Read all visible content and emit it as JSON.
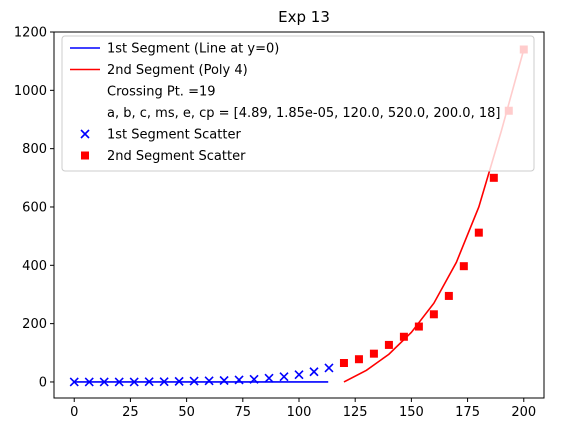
{
  "chart_data": {
    "type": "line",
    "title": "Exp 13",
    "xlabel": "",
    "ylabel": "",
    "xlim": [
      -9,
      209
    ],
    "ylim": [
      -55,
      1200
    ],
    "xticks": [
      0,
      25,
      50,
      75,
      100,
      125,
      150,
      175,
      200
    ],
    "yticks": [
      0,
      200,
      400,
      600,
      800,
      1000,
      1200
    ],
    "grid": false,
    "legend_position": "top-left",
    "colors": {
      "seg1": "#0000ff",
      "seg2": "#ff0000"
    },
    "series": [
      {
        "name": "1st Segment (Line at y=0)",
        "kind": "line",
        "color": "#0000ff",
        "x": [
          0,
          113
        ],
        "y": [
          0,
          0
        ]
      },
      {
        "name": "2nd Segment (Poly 4)",
        "kind": "line",
        "color": "#ff0000",
        "x": [
          120,
          130,
          140,
          150,
          160,
          170,
          180,
          190,
          200
        ],
        "y": [
          0,
          40,
          95,
          170,
          270,
          410,
          600,
          860,
          1140
        ]
      },
      {
        "name": "1st Segment Scatter",
        "kind": "scatter",
        "marker": "x",
        "color": "#0000ff",
        "x": [
          0,
          6.67,
          13.33,
          20,
          26.67,
          33.33,
          40,
          46.67,
          53.33,
          60,
          66.67,
          73.33,
          80,
          86.67,
          93.33,
          100,
          106.67,
          113.33
        ],
        "y": [
          0,
          0,
          0,
          0,
          0,
          1,
          1,
          2,
          3,
          4,
          5,
          7,
          9,
          13,
          18,
          25,
          35,
          48
        ]
      },
      {
        "name": "2nd Segment Scatter",
        "kind": "scatter",
        "marker": "s",
        "color": "#ff0000",
        "x": [
          120,
          126.67,
          133.33,
          140,
          146.67,
          153.33,
          160,
          166.67,
          173.33,
          180,
          186.67,
          193.33,
          200
        ],
        "y": [
          65,
          78,
          97,
          127,
          155,
          190,
          232,
          295,
          397,
          512,
          700,
          930,
          1140
        ]
      }
    ],
    "legend_entries": [
      {
        "label": "1st Segment (Line at y=0)",
        "symbol": "line",
        "color": "#0000ff"
      },
      {
        "label": "2nd Segment (Poly 4)",
        "symbol": "line",
        "color": "#ff0000"
      },
      {
        "label": "Crossing Pt. =19",
        "symbol": "none",
        "color": ""
      },
      {
        "label": "a, b, c, ms, e, cp = [4.89, 1.85e-05, 120.0, 520.0, 200.0, 18]",
        "symbol": "none",
        "color": ""
      },
      {
        "label": "1st Segment Scatter",
        "symbol": "x",
        "color": "#0000ff"
      },
      {
        "label": "2nd Segment Scatter",
        "symbol": "s",
        "color": "#ff0000"
      }
    ]
  }
}
